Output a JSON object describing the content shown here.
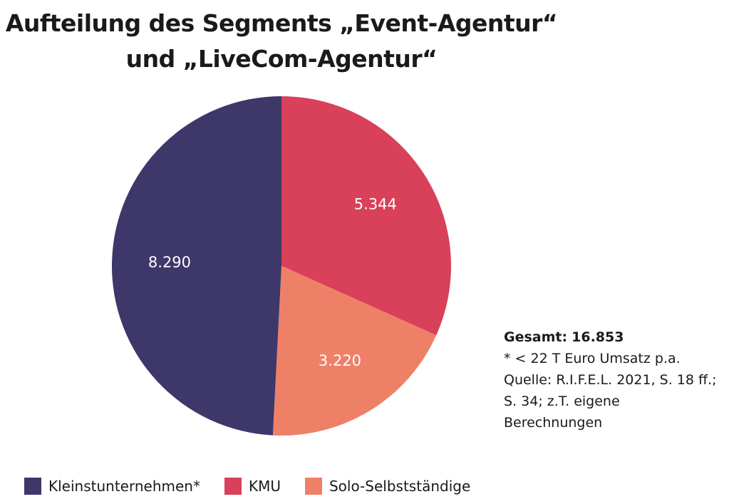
{
  "chart_data": {
    "type": "pie",
    "title_line1": "Aufteilung des Segments „Event-Agentur“",
    "title_line2": "und „LiveCom-Agentur“",
    "slices": [
      {
        "name": "KMU",
        "value": 5344,
        "label": "5.344",
        "color": "#d9405a"
      },
      {
        "name": "Solo-Selbstständige",
        "value": 3220,
        "label": "3.220",
        "color": "#ef8068"
      },
      {
        "name": "Kleinstunternehmen*",
        "value": 8290,
        "label": "8.290",
        "color": "#3e376a"
      }
    ],
    "legend": [
      {
        "label": "Kleinstunternehmen*",
        "color": "#3e376a"
      },
      {
        "label": "KMU",
        "color": "#d9405a"
      },
      {
        "label": "Solo-Selbstständige",
        "color": "#ef8068"
      }
    ],
    "total_label": "Gesamt:",
    "total_value": "16.853",
    "footnote": "* < 22 T Euro Umsatz p.a.",
    "source": "Quelle: R.I.F.E.L. 2021, S. 18 ff.; S. 34; z.T. eigene Berechnungen"
  }
}
